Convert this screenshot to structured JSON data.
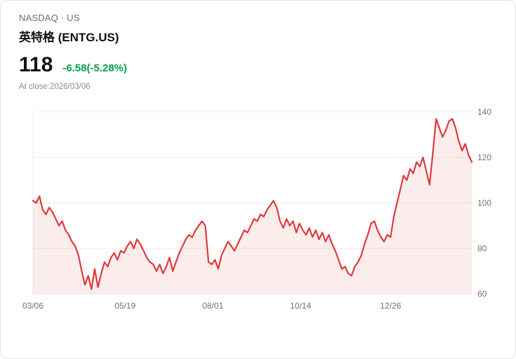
{
  "header": {
    "exchange": "NASDAQ · US",
    "title": "英特格 (ENTG.US)"
  },
  "quote": {
    "price": "118",
    "change": "-6.58(-5.28%)",
    "change_color": "#00a050",
    "as_of": "At close:2026/03/06"
  },
  "chart_data": {
    "type": "area",
    "title": "",
    "xlabel": "",
    "ylabel": "",
    "ylim": [
      60,
      140
    ],
    "y_ticks": [
      60,
      80,
      100,
      120,
      140
    ],
    "grid": true,
    "legend": "none",
    "x_labels": [
      {
        "label": "03/06",
        "pos": 0.0
      },
      {
        "label": "05/19",
        "pos": 0.21
      },
      {
        "label": "08/01",
        "pos": 0.41
      },
      {
        "label": "10/14",
        "pos": 0.61
      },
      {
        "label": "12/26",
        "pos": 0.815
      }
    ],
    "line_color": "#e0393c",
    "fill_color": "#e0393c",
    "fill_opacity": 0.09,
    "grid_color": "#ececec",
    "tick_color": "#707070",
    "values": [
      101,
      100,
      103,
      97,
      95,
      98,
      96,
      93,
      90,
      92,
      88,
      86,
      83,
      81,
      77,
      70,
      64,
      68,
      62,
      71,
      63,
      69,
      74,
      72,
      76,
      78,
      75,
      79,
      78,
      81,
      83,
      80,
      84,
      82,
      79,
      76,
      74,
      73,
      70,
      73,
      69,
      72,
      76,
      70,
      74,
      78,
      81,
      84,
      86,
      85,
      88,
      90,
      92,
      90,
      74,
      73,
      75,
      71,
      77,
      80,
      83,
      81,
      79,
      82,
      85,
      88,
      87,
      90,
      93,
      92,
      95,
      94,
      97,
      99,
      101,
      98,
      92,
      89,
      93,
      90,
      92,
      87,
      91,
      88,
      86,
      89,
      85,
      88,
      84,
      87,
      83,
      86,
      82,
      79,
      75,
      71,
      72,
      69,
      68,
      72,
      74,
      77,
      82,
      86,
      91,
      92,
      88,
      85,
      83,
      86,
      85,
      94,
      100,
      106,
      112,
      110,
      115,
      113,
      118,
      116,
      120,
      114,
      108,
      122,
      137,
      133,
      129,
      132,
      136,
      137,
      133,
      127,
      123,
      126,
      121,
      118
    ]
  }
}
